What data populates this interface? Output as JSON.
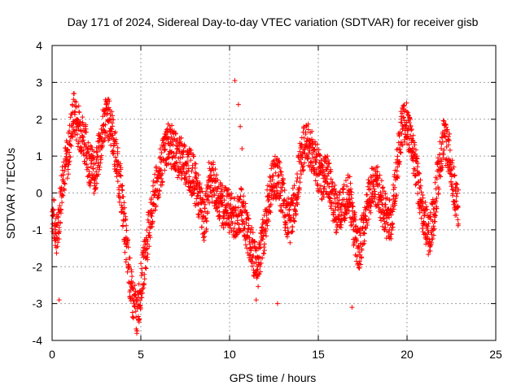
{
  "chart_data": {
    "type": "scatter",
    "title": "Day 171 of 2024, Sidereal Day-to-day VTEC variation (SDTVAR) for receiver gisb",
    "xlabel": "GPS time / hours",
    "ylabel": "SDTVAR / TECUs",
    "xlim": [
      0,
      25
    ],
    "ylim": [
      -4,
      4
    ],
    "xticks": [
      0,
      5,
      10,
      15,
      20,
      25
    ],
    "yticks": [
      -4,
      -3,
      -2,
      -1,
      0,
      1,
      2,
      3,
      4
    ],
    "grid": true,
    "marker": "plus",
    "color": "#ff0000",
    "series": [
      {
        "name": "SDTVAR",
        "trend": {
          "x": [
            0.0,
            0.3,
            0.6,
            0.9,
            1.2,
            1.5,
            1.8,
            2.1,
            2.4,
            2.7,
            3.0,
            3.3,
            3.6,
            3.9,
            4.2,
            4.5,
            4.8,
            5.0,
            5.3,
            5.6,
            5.9,
            6.2,
            6.5,
            6.8,
            7.1,
            7.4,
            7.7,
            8.0,
            8.3,
            8.6,
            8.9,
            9.5,
            10.0,
            10.4,
            10.7,
            11.0,
            11.3,
            11.6,
            11.9,
            12.2,
            12.5,
            12.8,
            13.1,
            13.4,
            13.7,
            14.0,
            14.3,
            14.6,
            14.9,
            15.2,
            15.5,
            15.8,
            16.1,
            16.4,
            16.7,
            17.0,
            17.3,
            17.6,
            17.9,
            18.2,
            18.5,
            18.8,
            19.1,
            19.4,
            19.7,
            20.0,
            20.3,
            20.6,
            20.9,
            21.2,
            21.5,
            21.8,
            22.1,
            22.4,
            22.7,
            22.9
          ],
          "y": [
            -0.5,
            -1.2,
            0.5,
            1.0,
            2.2,
            1.8,
            1.5,
            0.8,
            0.5,
            1.2,
            2.1,
            1.9,
            1.0,
            0.0,
            -1.5,
            -2.8,
            -3.3,
            -2.5,
            -1.5,
            -0.5,
            0.2,
            0.8,
            1.4,
            1.2,
            1.0,
            0.9,
            0.7,
            0.4,
            -0.2,
            -0.8,
            0.5,
            -0.3,
            -0.5,
            -0.7,
            -0.4,
            -1.0,
            -1.6,
            -2.0,
            -1.2,
            -0.2,
            0.5,
            0.3,
            -0.4,
            -0.8,
            -0.2,
            0.9,
            1.4,
            1.2,
            0.8,
            0.3,
            0.5,
            -0.2,
            -0.6,
            -0.3,
            0.2,
            -0.9,
            -1.6,
            -0.8,
            0.0,
            0.3,
            -0.1,
            -0.6,
            -0.8,
            0.5,
            1.8,
            1.9,
            1.2,
            0.3,
            -0.5,
            -1.2,
            -0.6,
            0.7,
            1.5,
            1.0,
            0.0,
            -0.5
          ],
          "envelope": 0.6
        },
        "spikes": [
          {
            "x": 10.3,
            "y": 3.05
          },
          {
            "x": 10.5,
            "y": 2.4
          },
          {
            "x": 10.6,
            "y": 1.8
          },
          {
            "x": 10.7,
            "y": 1.2
          },
          {
            "x": 0.4,
            "y": -2.9
          },
          {
            "x": 16.9,
            "y": -3.1
          },
          {
            "x": 12.7,
            "y": -3.0
          },
          {
            "x": 4.9,
            "y": -3.5
          },
          {
            "x": 11.5,
            "y": -2.9
          }
        ]
      }
    ]
  }
}
